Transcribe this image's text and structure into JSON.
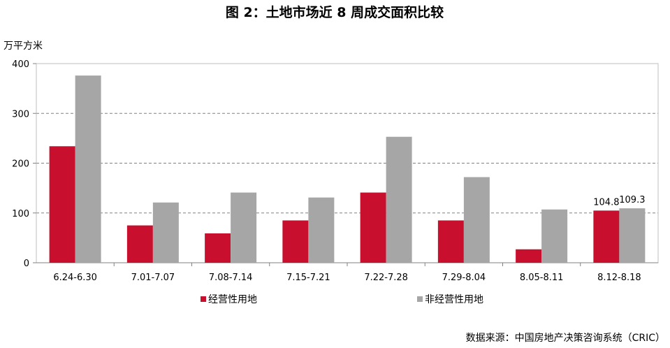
{
  "chart_data": {
    "type": "bar",
    "title": "图 2：土地市场近 8 周成交面积比较",
    "ylabel": "万平方米",
    "xlabel": "",
    "ylim": [
      0,
      400
    ],
    "yticks": [
      "0",
      "100",
      "200",
      "300",
      "400"
    ],
    "categories": [
      "6.24-6.30",
      "7.01-7.07",
      "7.08-7.14",
      "7.15-7.21",
      "7.22-7.28",
      "7.29-8.04",
      "8.05-8.11",
      "8.12-8.18"
    ],
    "series": [
      {
        "name": "经营性用地",
        "color": "#C8102E",
        "values": [
          234,
          75,
          59,
          85,
          141,
          85,
          27,
          104.8
        ]
      },
      {
        "name": "非经营性用地",
        "color": "#A6A6A6",
        "values": [
          376,
          121,
          141,
          131,
          253,
          172,
          107,
          109.3
        ]
      }
    ],
    "data_labels": [
      {
        "series": 0,
        "index": 7,
        "text": "104.8"
      },
      {
        "series": 1,
        "index": 7,
        "text": "109.3"
      }
    ],
    "grid": "horizontal-dashed",
    "legend": "bottom"
  },
  "source": "数据来源：中国房地产决策咨询系统（CRIC）"
}
